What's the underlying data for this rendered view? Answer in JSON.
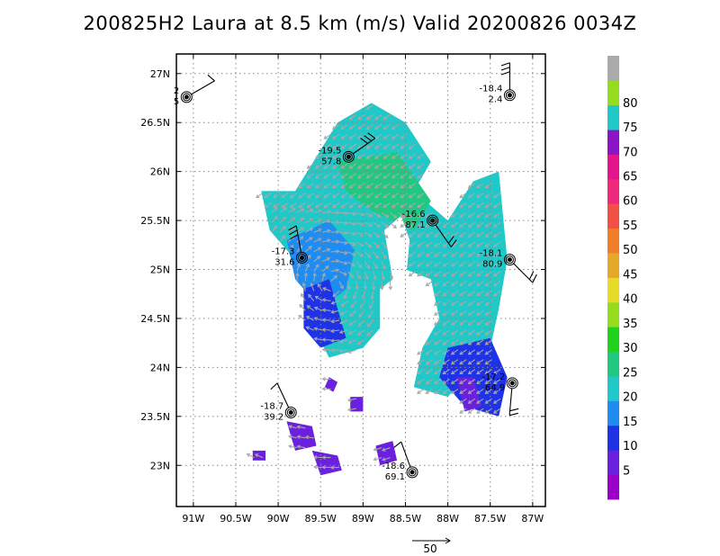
{
  "title": "200825H2 Laura at 8.5 km (m/s) Valid 20200826  0034Z",
  "chart_data": {
    "type": "heatmap",
    "subtype": "wind-speed map with wind vectors and station barbs",
    "xaxis": {
      "ticks": [
        -91,
        -90.5,
        -90,
        -89.5,
        -89,
        -88.5,
        -88,
        -87.5,
        -87
      ],
      "tick_labels": [
        "91W",
        "90.5W",
        "90W",
        "89.5W",
        "89W",
        "88.5W",
        "88W",
        "87.5W",
        "87W"
      ],
      "range": [
        -91.2,
        -86.85
      ]
    },
    "yaxis": {
      "ticks": [
        23,
        23.5,
        24,
        24.5,
        25,
        25.5,
        26,
        26.5,
        27
      ],
      "tick_labels": [
        "23N",
        "23.5N",
        "24N",
        "24.5N",
        "25N",
        "25.5N",
        "26N",
        "26.5N",
        "27N"
      ],
      "range": [
        22.58,
        27.2
      ]
    },
    "grid": "dotted",
    "colorbar": {
      "labels": [
        "5",
        "10",
        "15",
        "20",
        "25",
        "30",
        "35",
        "40",
        "45",
        "50",
        "55",
        "60",
        "65",
        "70",
        "75",
        "80"
      ],
      "colors": [
        "#9b00c8",
        "#6a20dc",
        "#1e32e6",
        "#1e8cf0",
        "#20c8c8",
        "#20c882",
        "#1ed21e",
        "#96dc1e",
        "#e6dc28",
        "#e6a828",
        "#f07e28",
        "#f05046",
        "#f0287c",
        "#e6148c",
        "#8c14c8",
        "#20c8c8",
        "#96dc1e",
        "#aaaaaa"
      ]
    },
    "vector_reference": "50",
    "regions": [
      {
        "kind": "speed",
        "value": 22,
        "poly": [
          [
            -89.8,
            25.8
          ],
          [
            -89.3,
            26.5
          ],
          [
            -88.9,
            26.7
          ],
          [
            -88.5,
            26.5
          ],
          [
            -88.2,
            26.1
          ],
          [
            -88.4,
            25.8
          ],
          [
            -88.0,
            25.5
          ],
          [
            -87.7,
            25.9
          ],
          [
            -87.4,
            26.0
          ],
          [
            -87.3,
            25.1
          ],
          [
            -87.4,
            24.6
          ],
          [
            -87.5,
            24.2
          ],
          [
            -87.7,
            24.0
          ],
          [
            -88.0,
            23.7
          ],
          [
            -88.4,
            23.8
          ],
          [
            -88.3,
            24.2
          ],
          [
            -88.1,
            24.5
          ],
          [
            -88.2,
            24.9
          ],
          [
            -88.5,
            25.0
          ],
          [
            -88.8,
            24.8
          ],
          [
            -88.8,
            24.4
          ],
          [
            -89.0,
            24.2
          ],
          [
            -89.4,
            24.1
          ],
          [
            -89.7,
            24.6
          ],
          [
            -89.7,
            25.0
          ],
          [
            -90.1,
            25.4
          ],
          [
            -90.2,
            25.8
          ]
        ]
      },
      {
        "kind": "speed",
        "value": 28,
        "poly": [
          [
            -89.3,
            26.1
          ],
          [
            -88.6,
            26.2
          ],
          [
            -88.2,
            25.7
          ],
          [
            -88.4,
            25.4
          ],
          [
            -88.9,
            25.6
          ],
          [
            -89.2,
            25.8
          ]
        ]
      },
      {
        "kind": "speed",
        "value": 16,
        "poly": [
          [
            -89.9,
            25.3
          ],
          [
            -89.4,
            25.5
          ],
          [
            -89.1,
            25.2
          ],
          [
            -89.2,
            24.8
          ],
          [
            -89.5,
            24.6
          ],
          [
            -89.8,
            24.9
          ]
        ]
      },
      {
        "kind": "speed",
        "value": 12,
        "poly": [
          [
            -89.7,
            24.8
          ],
          [
            -89.4,
            24.9
          ],
          [
            -89.3,
            24.6
          ],
          [
            -89.2,
            24.3
          ],
          [
            -89.5,
            24.2
          ],
          [
            -89.7,
            24.4
          ]
        ]
      },
      {
        "kind": "speed",
        "value": 12,
        "poly": [
          [
            -88.0,
            24.2
          ],
          [
            -87.5,
            24.3
          ],
          [
            -87.3,
            23.9
          ],
          [
            -87.4,
            23.5
          ],
          [
            -87.8,
            23.6
          ],
          [
            -88.1,
            23.9
          ]
        ]
      },
      {
        "kind": "speed",
        "value": 6,
        "poly": [
          [
            -87.9,
            23.9
          ],
          [
            -87.7,
            23.9
          ],
          [
            -87.6,
            23.6
          ],
          [
            -87.8,
            23.55
          ]
        ]
      },
      {
        "kind": "speed",
        "value": 5,
        "poly": [
          [
            -89.9,
            23.45
          ],
          [
            -89.6,
            23.4
          ],
          [
            -89.55,
            23.2
          ],
          [
            -89.8,
            23.15
          ]
        ]
      },
      {
        "kind": "speed",
        "value": 6,
        "poly": [
          [
            -89.6,
            23.15
          ],
          [
            -89.3,
            23.1
          ],
          [
            -89.25,
            22.95
          ],
          [
            -89.5,
            22.9
          ]
        ]
      },
      {
        "kind": "speed",
        "value": 5,
        "poly": [
          [
            -88.85,
            23.2
          ],
          [
            -88.65,
            23.25
          ],
          [
            -88.6,
            23.05
          ],
          [
            -88.8,
            23.0
          ]
        ]
      },
      {
        "kind": "speed",
        "value": 7,
        "poly": [
          [
            -89.15,
            23.7
          ],
          [
            -89.0,
            23.7
          ],
          [
            -89.0,
            23.55
          ],
          [
            -89.15,
            23.55
          ]
        ]
      },
      {
        "kind": "speed",
        "value": 5,
        "poly": [
          [
            -90.3,
            23.15
          ],
          [
            -90.15,
            23.15
          ],
          [
            -90.15,
            23.05
          ],
          [
            -90.3,
            23.05
          ]
        ]
      },
      {
        "kind": "speed",
        "value": 9,
        "poly": [
          [
            -89.4,
            23.9
          ],
          [
            -89.3,
            23.85
          ],
          [
            -89.35,
            23.75
          ],
          [
            -89.45,
            23.8
          ]
        ]
      },
      {
        "kind": "gap",
        "poly": [
          [
            -88.75,
            25.4
          ],
          [
            -88.55,
            25.55
          ],
          [
            -88.45,
            25.3
          ],
          [
            -88.5,
            24.85
          ],
          [
            -88.65,
            24.9
          ]
        ]
      }
    ],
    "stations": [
      {
        "temp": "-19.5",
        "rh": "57.8",
        "lon": -89.17,
        "lat": 26.15
      },
      {
        "temp": "-18.4",
        "rh": "2.4",
        "lon": -87.27,
        "lat": 26.78
      },
      {
        "temp": "-16.6",
        "rh": "87.1",
        "lon": -88.18,
        "lat": 25.5
      },
      {
        "temp": "-17.3",
        "rh": "31.6",
        "lon": -89.72,
        "lat": 25.12
      },
      {
        "temp": "-18.1",
        "rh": "80.9",
        "lon": -87.27,
        "lat": 25.1
      },
      {
        "temp": "-17.2",
        "rh": "64.9",
        "lon": -87.24,
        "lat": 23.84
      },
      {
        "temp": "-18.7",
        "rh": "39.2",
        "lon": -89.85,
        "lat": 23.54
      },
      {
        "temp": "-18.6",
        "rh": "69.1",
        "lon": -88.42,
        "lat": 22.93
      },
      {
        "temp": "2",
        "rh": "5",
        "lon": -91.08,
        "lat": 26.76
      }
    ]
  }
}
